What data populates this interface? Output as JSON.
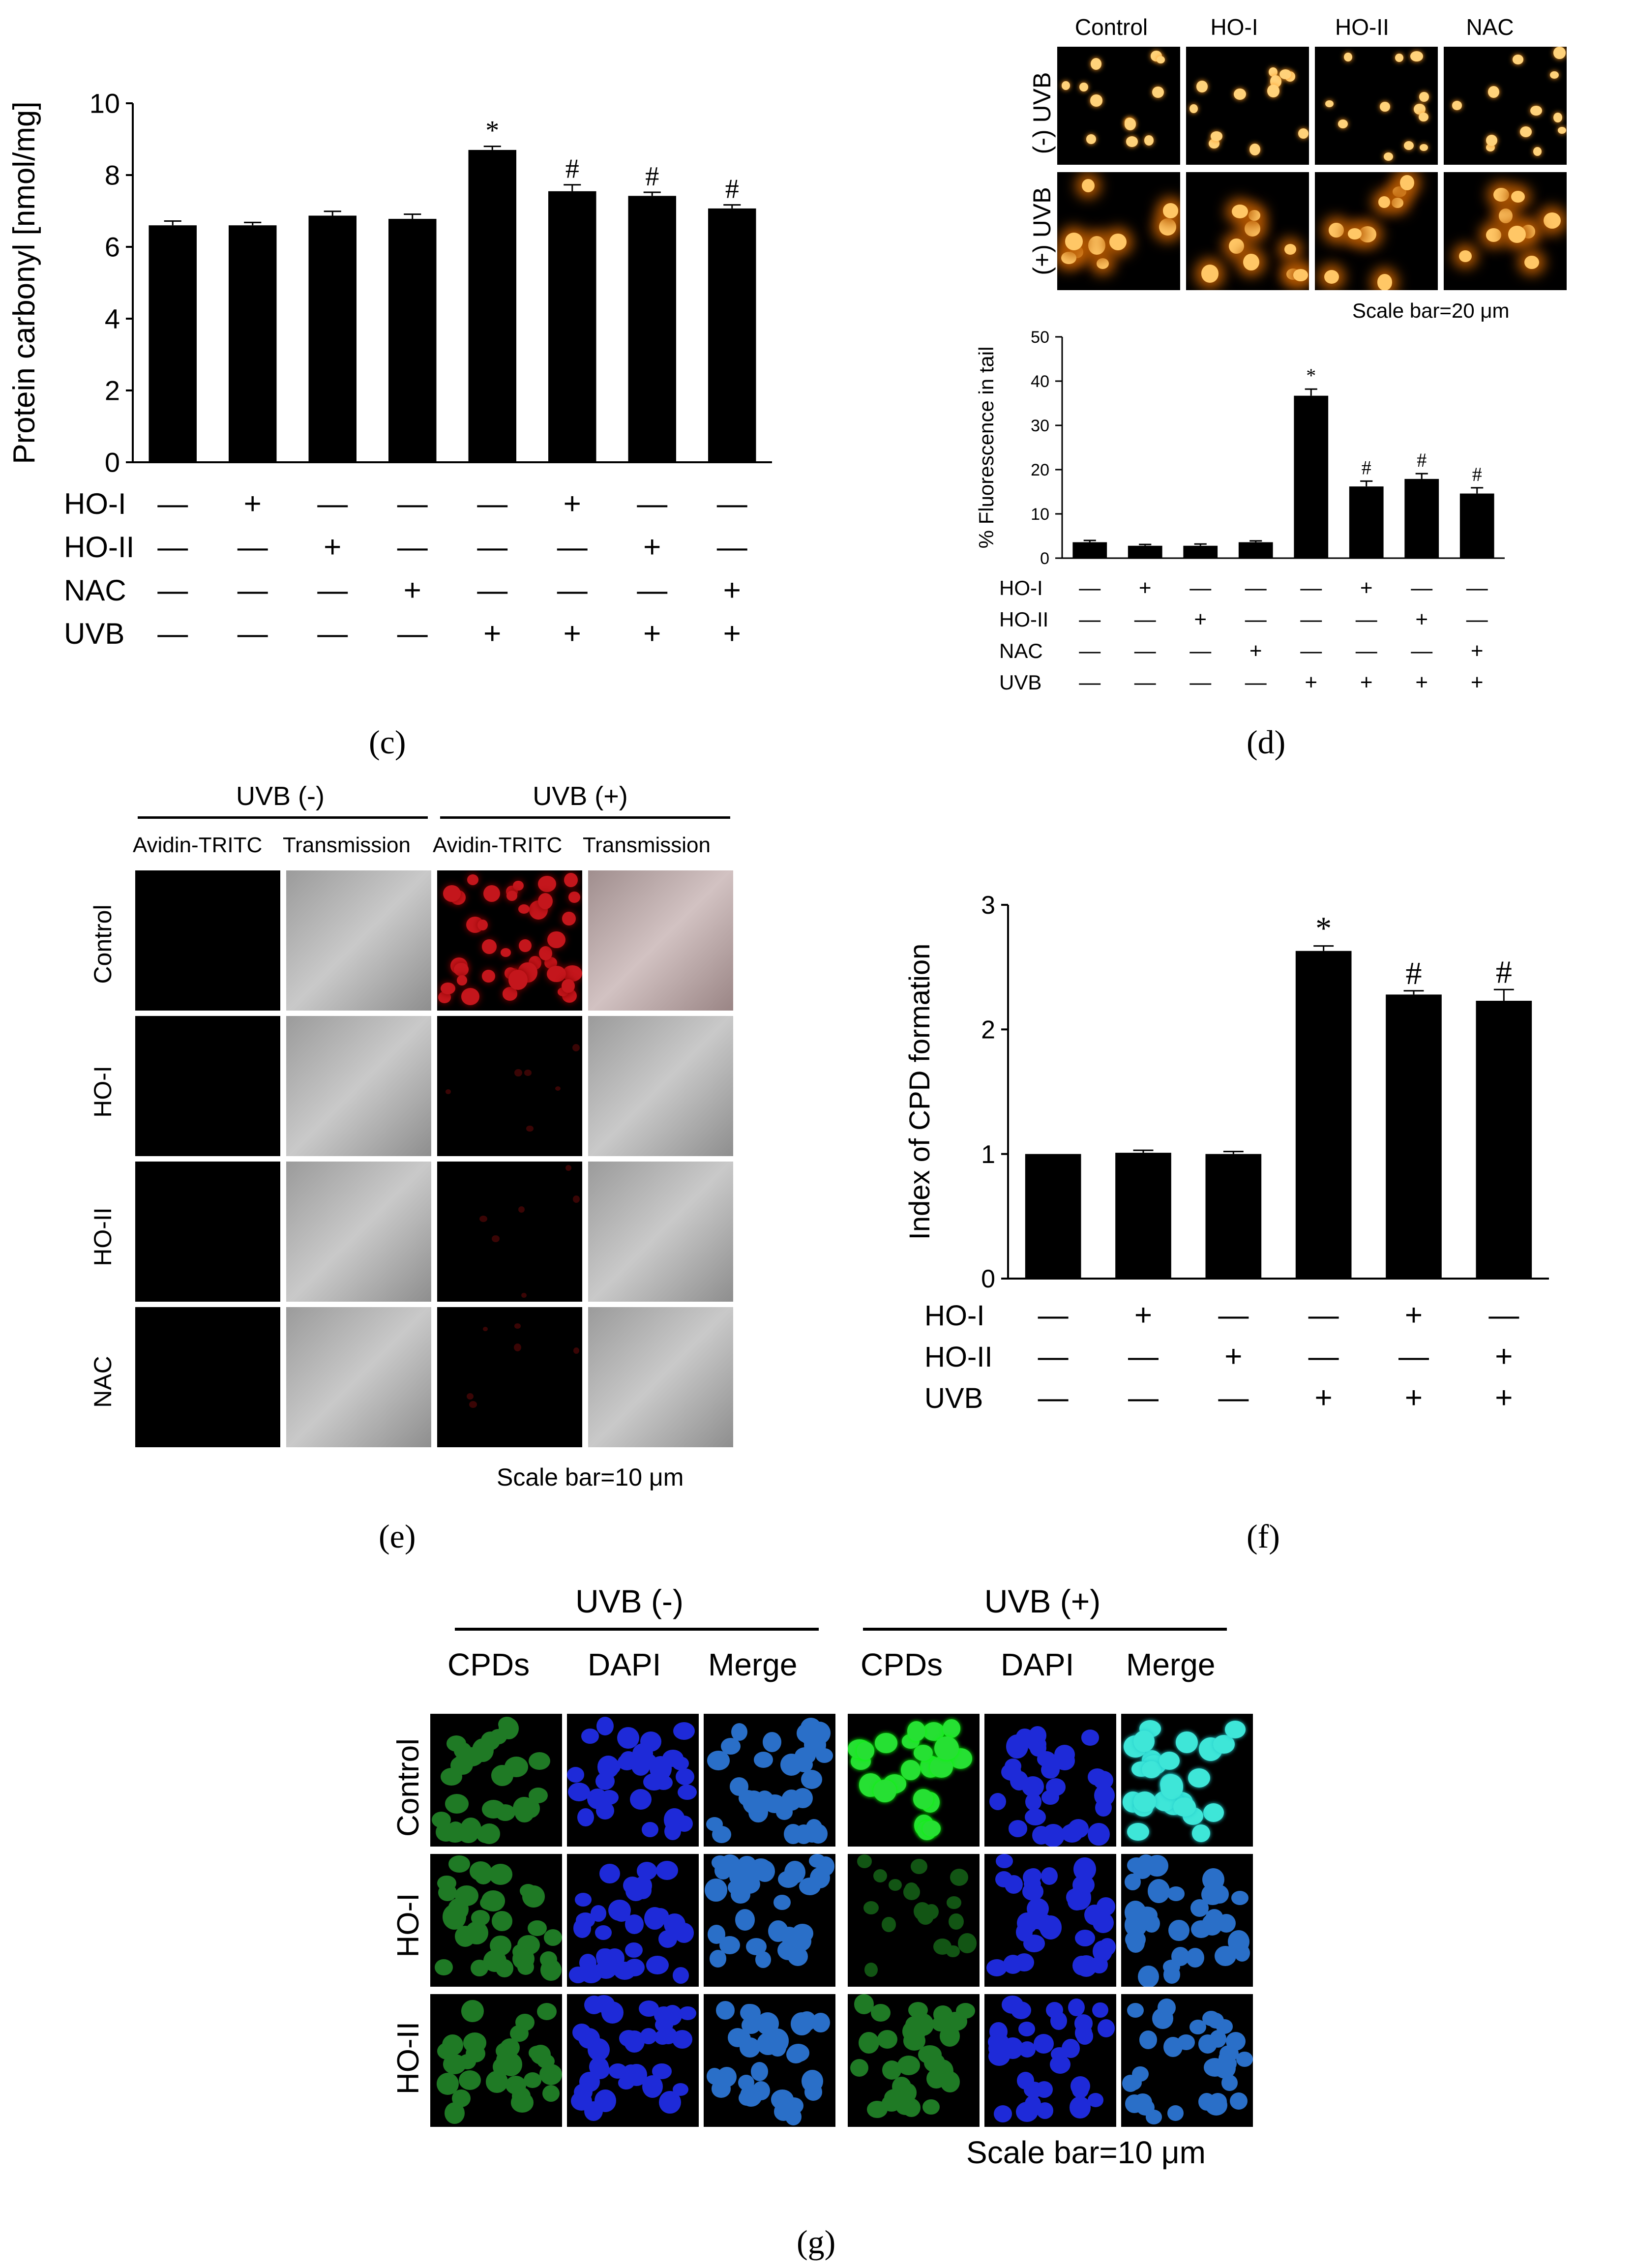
{
  "chart_data": [
    {
      "id": "c",
      "type": "bar",
      "caption": "(c)",
      "ylabel": "Protein carbonyl [nmol/mg]",
      "ylim": [
        0,
        10
      ],
      "yticks": [
        "0",
        "2",
        "4",
        "6",
        "8",
        "10"
      ],
      "values": [
        6.6,
        6.6,
        6.87,
        6.78,
        8.7,
        7.55,
        7.42,
        7.07
      ],
      "errors": [
        0.12,
        0.08,
        0.12,
        0.13,
        0.1,
        0.18,
        0.1,
        0.1
      ],
      "annotations": [
        "",
        "",
        "",
        "",
        "*",
        "#",
        "#",
        "#"
      ],
      "treatment_rows": [
        {
          "label": "HO-I",
          "signs": [
            "—",
            "+",
            "—",
            "—",
            "—",
            "+",
            "—",
            "—"
          ]
        },
        {
          "label": "HO-II",
          "signs": [
            "—",
            "—",
            "+",
            "—",
            "—",
            "—",
            "+",
            "—"
          ]
        },
        {
          "label": "NAC",
          "signs": [
            "—",
            "—",
            "—",
            "+",
            "—",
            "—",
            "—",
            "+"
          ]
        },
        {
          "label": "UVB",
          "signs": [
            "—",
            "—",
            "—",
            "—",
            "+",
            "+",
            "+",
            "+"
          ]
        }
      ]
    },
    {
      "id": "d",
      "type": "bar",
      "caption": "(d)",
      "ylabel": "% Fluorescence in tail",
      "ylim": [
        0,
        50
      ],
      "yticks": [
        "0",
        "10",
        "20",
        "30",
        "40",
        "50"
      ],
      "values": [
        3.6,
        2.8,
        2.8,
        3.6,
        36.7,
        16.2,
        17.9,
        14.6
      ],
      "errors": [
        0.4,
        0.3,
        0.4,
        0.3,
        1.5,
        1.2,
        1.2,
        1.3
      ],
      "annotations": [
        "",
        "",
        "",
        "",
        "*",
        "#",
        "#",
        "#"
      ],
      "treatment_rows": [
        {
          "label": "HO-I",
          "signs": [
            "—",
            "+",
            "—",
            "—",
            "—",
            "+",
            "—",
            "—"
          ]
        },
        {
          "label": "HO-II",
          "signs": [
            "—",
            "—",
            "+",
            "—",
            "—",
            "—",
            "+",
            "—"
          ]
        },
        {
          "label": "NAC",
          "signs": [
            "—",
            "—",
            "—",
            "+",
            "—",
            "—",
            "—",
            "+"
          ]
        },
        {
          "label": "UVB",
          "signs": [
            "—",
            "—",
            "—",
            "—",
            "+",
            "+",
            "+",
            "+"
          ]
        }
      ],
      "image_grid": {
        "columns": [
          "Control",
          "HO-I",
          "HO-II",
          "NAC"
        ],
        "rows": [
          "(-) UVB",
          "(+) UVB"
        ],
        "scale_bar": "Scale bar=20 μm"
      }
    },
    {
      "id": "f",
      "type": "bar",
      "caption": "(f)",
      "ylabel": "Index of CPD formation",
      "ylim": [
        0,
        3
      ],
      "yticks": [
        "0",
        "1",
        "2",
        "3"
      ],
      "values": [
        1.0,
        1.01,
        1.0,
        2.63,
        2.28,
        2.23
      ],
      "errors": [
        0.0,
        0.02,
        0.02,
        0.04,
        0.03,
        0.09
      ],
      "annotations": [
        "",
        "",
        "",
        "*",
        "#",
        "#"
      ],
      "treatment_rows": [
        {
          "label": "HO-I",
          "signs": [
            "—",
            "+",
            "—",
            "—",
            "+",
            "—"
          ]
        },
        {
          "label": "HO-II",
          "signs": [
            "—",
            "—",
            "+",
            "—",
            "—",
            "+"
          ]
        },
        {
          "label": "UVB",
          "signs": [
            "—",
            "—",
            "—",
            "+",
            "+",
            "+"
          ]
        }
      ]
    }
  ],
  "panel_e": {
    "caption": "(e)",
    "group_headers": [
      "UVB (-)",
      "UVB (+)"
    ],
    "columns": [
      "Avidin-TRITC",
      "Transmission",
      "Avidin-TRITC",
      "Transmission"
    ],
    "rows": [
      "Control",
      "HO-I",
      "HO-II",
      "NAC"
    ],
    "scale_bar": "Scale bar=10 μm"
  },
  "panel_g": {
    "caption": "(g)",
    "group_headers": [
      "UVB (-)",
      "UVB (+)"
    ],
    "columns": [
      "CPDs",
      "DAPI",
      "Merge",
      "CPDs",
      "DAPI",
      "Merge"
    ],
    "rows": [
      "Control",
      "HO-I",
      "HO-II"
    ],
    "scale_bar": "Scale bar=10 μm"
  }
}
